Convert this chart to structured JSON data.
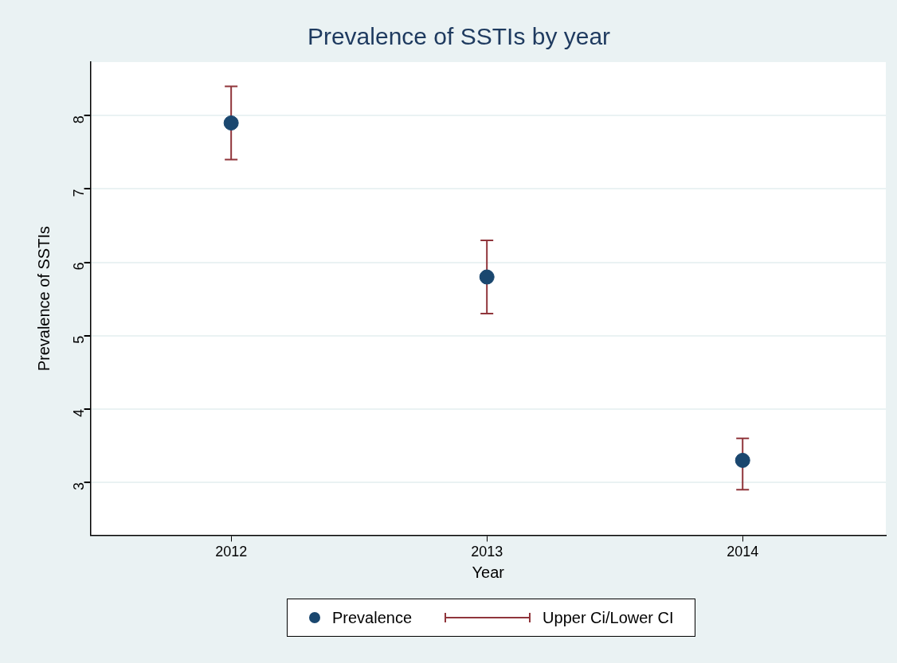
{
  "chart_data": {
    "type": "scatter",
    "title": "Prevalence of SSTIs by year",
    "xlabel": "Year",
    "ylabel": "Prevalence of SSTIs",
    "x": [
      2012,
      2013,
      2014
    ],
    "series": [
      {
        "name": "Prevalence",
        "color": "#1a476f",
        "values": [
          7.9,
          5.8,
          3.3
        ],
        "marker": "circle",
        "errors": [
          [
            7.4,
            8.4
          ],
          [
            5.3,
            6.3
          ],
          [
            2.9,
            3.6
          ]
        ]
      },
      {
        "name": "Upper Ci/Lower CI",
        "color": "#90353b",
        "values": [
          null,
          null,
          null
        ]
      }
    ],
    "xlim": [
      2011.45,
      2014.56
    ],
    "xticks": [
      2012,
      2013,
      2014
    ],
    "ylim": [
      2.28,
      8.73
    ],
    "yticks": [
      3,
      4,
      5,
      6,
      7,
      8
    ],
    "grid": "y",
    "legend": "bottom"
  }
}
